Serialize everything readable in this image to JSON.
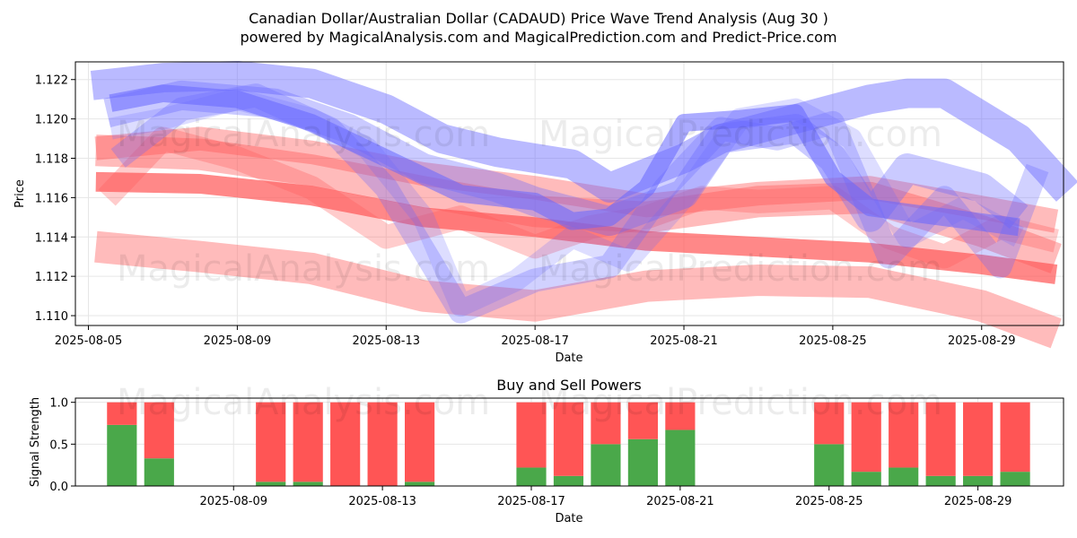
{
  "title_line1": "Canadian Dollar/Australian Dollar (CADAUD) Price Wave Trend Analysis (Aug 30 )",
  "title_line2": "powered by MagicalAnalysis.com and MagicalPrediction.com and Predict-Price.com",
  "watermarks": [
    "MagicalAnalysis.com",
    "MagicalPrediction.com"
  ],
  "colors": {
    "blue_band": "#6666ff",
    "red_band": "#ff5555",
    "buy": "#4aa84a",
    "sell": "#ff4a4a",
    "grid": "#e6e6e6"
  },
  "chart_data": [
    {
      "type": "line",
      "title": "",
      "xlabel": "Date",
      "ylabel": "Price",
      "xlim": [
        -0.35,
        26.2
      ],
      "ylim": [
        1.1095,
        1.1229
      ],
      "x_start_date": "2025-08-05",
      "xticks": [
        {
          "day": 0,
          "label": "2025-08-05"
        },
        {
          "day": 4,
          "label": "2025-08-09"
        },
        {
          "day": 8,
          "label": "2025-08-13"
        },
        {
          "day": 12,
          "label": "2025-08-17"
        },
        {
          "day": 16,
          "label": "2025-08-21"
        },
        {
          "day": 20,
          "label": "2025-08-25"
        },
        {
          "day": 24,
          "label": "2025-08-29"
        }
      ],
      "yticks": [
        1.11,
        1.112,
        1.114,
        1.116,
        1.118,
        1.12,
        1.122
      ],
      "ytick_labels": [
        "1.110",
        "1.112",
        "1.114",
        "1.116",
        "1.118",
        "1.120",
        "1.122"
      ],
      "series": [
        {
          "name": "red-wide-upper",
          "color": "red",
          "width": 0.0016,
          "opacity": 0.4,
          "x": [
            0.2,
            3,
            6,
            9,
            12,
            15,
            18,
            21,
            24,
            26
          ],
          "y": [
            1.1184,
            1.1182,
            1.1174,
            1.1163,
            1.1153,
            1.115,
            1.1158,
            1.116,
            1.1143,
            1.1129
          ]
        },
        {
          "name": "red-wide-lower",
          "color": "red",
          "width": 0.0016,
          "opacity": 0.4,
          "x": [
            0.2,
            3,
            6,
            9,
            12,
            15,
            18,
            21,
            24,
            26
          ],
          "y": [
            1.1135,
            1.113,
            1.1124,
            1.111,
            1.1105,
            1.1115,
            1.1118,
            1.1117,
            1.1105,
            1.1091
          ]
        },
        {
          "name": "red-center-trend",
          "color": "red",
          "width": 0.001,
          "opacity": 0.7,
          "x": [
            0.2,
            3,
            6,
            9,
            12,
            15,
            18,
            21,
            24,
            26
          ],
          "y": [
            1.1168,
            1.1167,
            1.1161,
            1.115,
            1.1145,
            1.1138,
            1.1135,
            1.1132,
            1.1126,
            1.1121
          ]
        },
        {
          "name": "red-mid-upper",
          "color": "red",
          "width": 0.0012,
          "opacity": 0.4,
          "x": [
            0.2,
            3,
            6,
            9,
            12,
            15,
            18,
            21,
            24,
            26
          ],
          "y": [
            1.1185,
            1.119,
            1.1183,
            1.1172,
            1.1165,
            1.1156,
            1.1162,
            1.1165,
            1.1155,
            1.1148
          ]
        },
        {
          "name": "red-zigzag",
          "color": "red",
          "width": 0.0012,
          "opacity": 0.3,
          "x": [
            0.5,
            2,
            4,
            6,
            8,
            10,
            12,
            13.5,
            15,
            16.5,
            18,
            20,
            21.5,
            23,
            24.5,
            26
          ],
          "y": [
            1.116,
            1.119,
            1.118,
            1.1165,
            1.114,
            1.115,
            1.1135,
            1.1145,
            1.115,
            1.116,
            1.1158,
            1.116,
            1.114,
            1.113,
            1.1145,
            1.1138
          ]
        },
        {
          "name": "blue-wide-top",
          "color": "blue",
          "width": 0.0015,
          "opacity": 0.45,
          "x": [
            0.1,
            2,
            4,
            6,
            8,
            9.5,
            11,
            13,
            14,
            16,
            17,
            20,
            21,
            22,
            23,
            25,
            26.3
          ],
          "y": [
            1.1217,
            1.1221,
            1.1222,
            1.1218,
            1.1205,
            1.119,
            1.1183,
            1.1177,
            1.1165,
            1.118,
            1.119,
            1.1205,
            1.121,
            1.1213,
            1.1213,
            1.119,
            1.1163
          ]
        },
        {
          "name": "blue-wide-mid",
          "color": "blue",
          "width": 0.0015,
          "opacity": 0.35,
          "x": [
            0.5,
            2.5,
            5,
            7,
            9,
            11,
            12,
            14,
            16,
            17,
            19,
            20,
            21,
            22,
            24,
            25
          ],
          "y": [
            1.1203,
            1.1212,
            1.1208,
            1.1195,
            1.1175,
            1.1165,
            1.1158,
            1.1148,
            1.1162,
            1.119,
            1.1195,
            1.118,
            1.115,
            1.1175,
            1.1165,
            1.115
          ]
        },
        {
          "name": "blue-dip",
          "color": "blue",
          "width": 0.0012,
          "opacity": 0.3,
          "x": [
            0.8,
            2.5,
            4.5,
            6.5,
            8,
            10,
            12,
            14,
            15.5,
            17,
            18.5,
            20,
            21.5,
            23,
            24.5,
            25.5
          ],
          "y": [
            1.118,
            1.1205,
            1.1212,
            1.1195,
            1.1165,
            1.1102,
            1.1118,
            1.1125,
            1.1165,
            1.1195,
            1.119,
            1.1198,
            1.113,
            1.116,
            1.1125,
            1.1175
          ]
        },
        {
          "name": "blue-dip-2",
          "color": "blue",
          "width": 0.0011,
          "opacity": 0.22,
          "x": [
            0.6,
            2,
            4,
            6,
            7.5,
            9,
            10,
            11.5,
            13,
            14.5,
            16,
            17.5,
            19,
            20.5,
            22,
            23.5,
            25
          ],
          "y": [
            1.1195,
            1.12,
            1.121,
            1.12,
            1.1185,
            1.115,
            1.1105,
            1.1118,
            1.114,
            1.1128,
            1.116,
            1.12,
            1.1205,
            1.119,
            1.114,
            1.1155,
            1.114
          ]
        },
        {
          "name": "blue-core",
          "color": "blue",
          "width": 0.0009,
          "opacity": 0.55,
          "x": [
            0.6,
            2,
            4,
            6,
            8,
            10,
            12,
            13,
            14,
            15,
            16,
            17.5,
            19,
            20,
            21,
            23,
            25
          ],
          "y": [
            1.1208,
            1.1213,
            1.121,
            1.1198,
            1.118,
            1.1162,
            1.1158,
            1.1148,
            1.115,
            1.1165,
            1.1198,
            1.12,
            1.1203,
            1.117,
            1.1155,
            1.115,
            1.1145
          ]
        }
      ]
    },
    {
      "type": "bar",
      "title": "Buy and Sell Powers",
      "xlabel": "Date",
      "ylabel": "Signal Strength",
      "xlim": [
        -0.25,
        26.3
      ],
      "ylim": [
        0,
        1.05
      ],
      "x_start_date": "2025-08-05",
      "xticks": [
        {
          "day": 4,
          "label": "2025-08-09"
        },
        {
          "day": 8,
          "label": "2025-08-13"
        },
        {
          "day": 12,
          "label": "2025-08-17"
        },
        {
          "day": 16,
          "label": "2025-08-21"
        },
        {
          "day": 20,
          "label": "2025-08-25"
        },
        {
          "day": 24,
          "label": "2025-08-29"
        }
      ],
      "yticks": [
        0.0,
        0.5,
        1.0
      ],
      "ytick_labels": [
        "0.0",
        "0.5",
        "1.0"
      ],
      "series": [
        {
          "name": "Buy",
          "color": "green",
          "x": [
            1,
            2,
            5,
            6,
            7,
            8,
            9,
            12,
            13,
            14,
            15,
            16,
            20,
            21,
            22,
            23,
            24,
            25
          ],
          "values": [
            0.73,
            0.33,
            0.05,
            0.05,
            0.0,
            0.0,
            0.05,
            0.22,
            0.12,
            0.5,
            0.56,
            0.67,
            0.5,
            0.17,
            0.22,
            0.12,
            0.12,
            0.17
          ]
        },
        {
          "name": "Sell",
          "color": "red",
          "x": [
            1,
            2,
            5,
            6,
            7,
            8,
            9,
            12,
            13,
            14,
            15,
            16,
            20,
            21,
            22,
            23,
            24,
            25
          ],
          "values": [
            0.27,
            0.67,
            0.95,
            0.95,
            1.0,
            1.0,
            0.95,
            0.78,
            0.88,
            0.5,
            0.44,
            0.33,
            0.5,
            0.83,
            0.78,
            0.88,
            0.88,
            0.83
          ]
        }
      ]
    }
  ]
}
